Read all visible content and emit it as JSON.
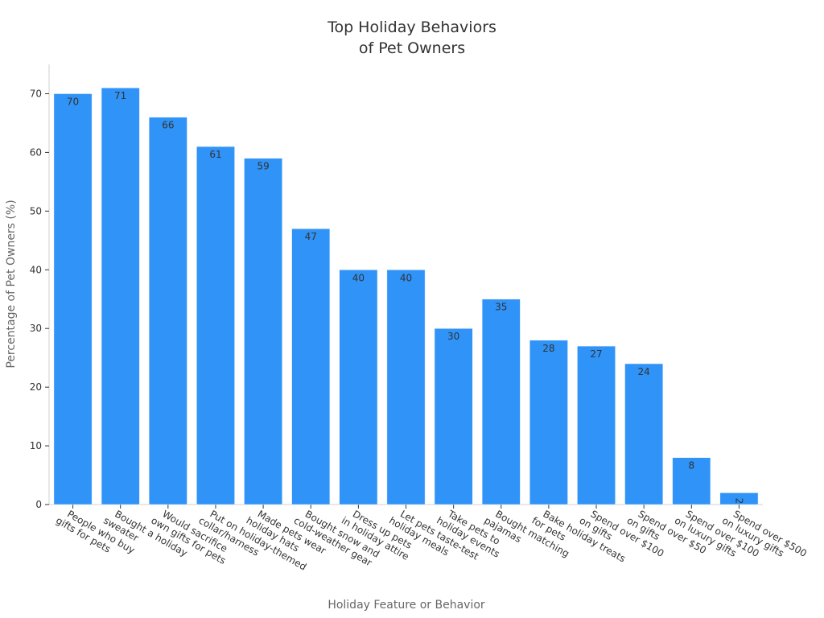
{
  "chart_data": {
    "type": "bar",
    "title_lines": [
      "Top Holiday Behaviors",
      "of Pet Owners"
    ],
    "xlabel": "Holiday Feature or Behavior",
    "ylabel": "Percentage of Pet Owners (%)",
    "ylim": [
      0,
      75
    ],
    "yticks": [
      0,
      10,
      20,
      30,
      40,
      50,
      60,
      70
    ],
    "grid": false,
    "categories": [
      [
        "People who buy",
        "gifts for pets"
      ],
      [
        "Bought a holiday",
        "sweater"
      ],
      [
        "Would sacrifice",
        "own gifts for pets"
      ],
      [
        "Put on holiday-themed",
        "collar/harness"
      ],
      [
        "Made pets wear",
        "holiday hats"
      ],
      [
        "Bought snow and",
        "cold-weather gear"
      ],
      [
        "Dress up pets",
        "in holiday attire"
      ],
      [
        "Let pets taste-test",
        "holiday meals"
      ],
      [
        "Take pets to",
        "holiday events"
      ],
      [
        "Bought matching",
        "pajamas"
      ],
      [
        "Bake holiday treats",
        "for pets"
      ],
      [
        "Spend over $100",
        "on gifts"
      ],
      [
        "Spend over $50",
        "on gifts"
      ],
      [
        "Spend over $100",
        "on luxury gifts"
      ],
      [
        "Spend over $500",
        "on luxury gifts"
      ]
    ],
    "values": [
      70,
      71,
      66,
      61,
      59,
      47,
      40,
      40,
      30,
      35,
      28,
      27,
      24,
      8,
      2
    ],
    "bar_color": "#2f93f7"
  }
}
